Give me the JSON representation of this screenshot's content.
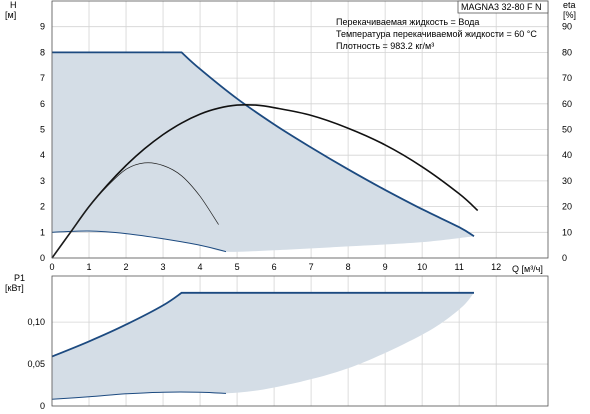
{
  "chart_data": [
    {
      "type": "line",
      "panel": "head-efficiency",
      "model": "MAGNA3 32-80 F N",
      "info_lines": [
        "Перекачиваемая жидкость = Вода",
        "Температура перекачиваемой жидкости = 60 °C",
        "Плотность = 983.2 кг/м³"
      ],
      "xlabel": "Q [м³/ч]",
      "ylabel_left_line1": "H",
      "ylabel_left_line2": "[м]",
      "ylabel_right_line1": "eta",
      "ylabel_right_line2": "[%]",
      "xlim": [
        0,
        13.4
      ],
      "ylim_left": [
        0,
        10
      ],
      "ylim_right": [
        0,
        100
      ],
      "x_ticks": [
        0,
        1,
        2,
        3,
        4,
        5,
        6,
        7,
        8,
        9,
        10,
        11,
        12
      ],
      "x_tick_labels": [
        "0",
        "1",
        "2",
        "3",
        "4",
        "5",
        "6",
        "7",
        "8",
        "9",
        "10",
        "11",
        "12"
      ],
      "y_left_ticks": [
        0,
        1,
        2,
        3,
        4,
        5,
        6,
        7,
        8,
        9
      ],
      "y_left_tick_labels": [
        "0",
        "1",
        "2",
        "3",
        "4",
        "5",
        "6",
        "7",
        "8",
        "9"
      ],
      "y_right_ticks": [
        0,
        10,
        20,
        30,
        40,
        50,
        60,
        70,
        80,
        90
      ],
      "y_right_tick_labels": [
        "0",
        "10",
        "20",
        "30",
        "40",
        "50",
        "60",
        "70",
        "80",
        "90"
      ],
      "grid": true,
      "operating_area": {
        "upper": [
          [
            0,
            8.0
          ],
          [
            3.5,
            8.0
          ],
          [
            4.0,
            7.35
          ],
          [
            5.0,
            6.2
          ],
          [
            6.0,
            5.2
          ],
          [
            7.0,
            4.3
          ],
          [
            8.0,
            3.45
          ],
          [
            9.0,
            2.65
          ],
          [
            10.0,
            1.9
          ],
          [
            11.0,
            1.2
          ],
          [
            11.4,
            0.85
          ]
        ],
        "lower": [
          [
            0,
            1.0
          ],
          [
            1.0,
            1.05
          ],
          [
            2.0,
            0.95
          ],
          [
            3.0,
            0.75
          ],
          [
            4.0,
            0.5
          ],
          [
            4.7,
            0.25
          ],
          [
            6.0,
            0.3
          ],
          [
            8.0,
            0.45
          ],
          [
            10.0,
            0.62
          ],
          [
            11.4,
            0.85
          ]
        ]
      },
      "series": [
        {
          "role": "max-head",
          "axis": "left",
          "points": [
            [
              0,
              8.0
            ],
            [
              3.5,
              8.0
            ],
            [
              4.0,
              7.35
            ],
            [
              5.0,
              6.2
            ],
            [
              6.0,
              5.2
            ],
            [
              7.0,
              4.3
            ],
            [
              8.0,
              3.45
            ],
            [
              9.0,
              2.65
            ],
            [
              10.0,
              1.9
            ],
            [
              11.0,
              1.2
            ],
            [
              11.4,
              0.85
            ]
          ]
        },
        {
          "role": "min-head",
          "axis": "left",
          "points": [
            [
              0,
              1.0
            ],
            [
              1.0,
              1.05
            ],
            [
              2.0,
              0.95
            ],
            [
              3.0,
              0.75
            ],
            [
              4.0,
              0.5
            ],
            [
              4.7,
              0.25
            ]
          ]
        },
        {
          "role": "efficiency-max",
          "axis": "right",
          "points": [
            [
              0,
              0
            ],
            [
              0.5,
              10
            ],
            [
              1.0,
              20
            ],
            [
              1.5,
              28.5
            ],
            [
              2.0,
              36
            ],
            [
              2.5,
              42.5
            ],
            [
              3.0,
              48
            ],
            [
              3.5,
              52.5
            ],
            [
              4.0,
              56
            ],
            [
              4.5,
              58.3
            ],
            [
              5.0,
              59.5
            ],
            [
              5.5,
              59.5
            ],
            [
              6.0,
              58.5
            ],
            [
              7.0,
              55.5
            ],
            [
              8.0,
              50.5
            ],
            [
              9.0,
              44
            ],
            [
              10.0,
              35.5
            ],
            [
              11.0,
              25
            ],
            [
              11.5,
              18.5
            ]
          ]
        },
        {
          "role": "efficiency-min",
          "axis": "right",
          "points": [
            [
              0,
              0
            ],
            [
              0.5,
              10
            ],
            [
              1.0,
              20
            ],
            [
              1.5,
              28
            ],
            [
              2.0,
              34.5
            ],
            [
              2.5,
              37
            ],
            [
              3.0,
              36
            ],
            [
              3.5,
              32
            ],
            [
              4.0,
              24
            ],
            [
              4.5,
              13
            ]
          ]
        }
      ]
    },
    {
      "type": "line",
      "panel": "power",
      "ylabel_line1": "P1",
      "ylabel_line2": "[кВт]",
      "xlim": [
        0,
        13.4
      ],
      "ylim": [
        0,
        0.155
      ],
      "y_ticks": [
        0,
        0.05,
        0.1
      ],
      "y_tick_labels": [
        "0",
        "0,05",
        "0,10"
      ],
      "x_ticks": [
        0,
        1,
        2,
        3,
        4,
        5,
        6,
        7,
        8,
        9,
        10,
        11,
        12
      ],
      "grid": true,
      "operating_area": {
        "upper": [
          [
            0,
            0.059
          ],
          [
            1.0,
            0.077
          ],
          [
            2.0,
            0.097
          ],
          [
            3.0,
            0.12
          ],
          [
            3.5,
            0.135
          ],
          [
            11.4,
            0.135
          ]
        ],
        "lower": [
          [
            0,
            0.008
          ],
          [
            1.0,
            0.011
          ],
          [
            2.0,
            0.0145
          ],
          [
            3.0,
            0.0165
          ],
          [
            4.0,
            0.0165
          ],
          [
            4.7,
            0.015
          ],
          [
            6.0,
            0.022
          ],
          [
            8.0,
            0.045
          ],
          [
            10.0,
            0.085
          ],
          [
            11.0,
            0.115
          ],
          [
            11.4,
            0.135
          ]
        ]
      },
      "series": [
        {
          "role": "max-power",
          "points": [
            [
              0,
              0.059
            ],
            [
              1.0,
              0.077
            ],
            [
              2.0,
              0.097
            ],
            [
              3.0,
              0.12
            ],
            [
              3.5,
              0.135
            ],
            [
              11.4,
              0.135
            ]
          ]
        },
        {
          "role": "min-power",
          "points": [
            [
              0,
              0.008
            ],
            [
              1.0,
              0.011
            ],
            [
              2.0,
              0.0145
            ],
            [
              3.0,
              0.0165
            ],
            [
              4.0,
              0.0165
            ],
            [
              4.7,
              0.015
            ]
          ]
        }
      ]
    }
  ],
  "colors": {
    "area_fill": "#d4dde6",
    "head_curve": "#1c4a80",
    "efficiency_max": "#111111",
    "efficiency_min": "#222222",
    "grid": "#d4d4d4"
  }
}
